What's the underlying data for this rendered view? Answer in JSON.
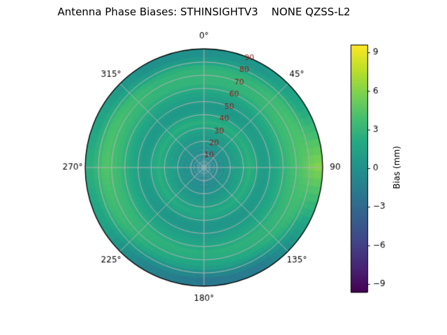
{
  "title": "Antenna Phase Biases: STHINSIGHTV3    NONE QZSS-L2",
  "chart_data": {
    "type": "heatmap",
    "projection": "polar",
    "title": "Antenna Phase Biases: STHINSIGHTV3    NONE QZSS-L2",
    "theta_zero_location": "N",
    "theta_direction": "clockwise",
    "angular_ticks": [
      {
        "deg": 0,
        "label": "0°"
      },
      {
        "deg": 45,
        "label": "45°"
      },
      {
        "deg": 90,
        "label": "90"
      },
      {
        "deg": 135,
        "label": "135°"
      },
      {
        "deg": 180,
        "label": "180°"
      },
      {
        "deg": 225,
        "label": "225°"
      },
      {
        "deg": 270,
        "label": "270°"
      },
      {
        "deg": 315,
        "label": "315°"
      }
    ],
    "radial_ticks": [
      10,
      20,
      30,
      40,
      50,
      60,
      70,
      80,
      90
    ],
    "radial_max": 90,
    "radial_label_angle_deg": 22.5,
    "grid": true,
    "colormap": "viridis",
    "azimuth_bins_deg": [
      0,
      30,
      60,
      90,
      120,
      150,
      180,
      210,
      240,
      270,
      300,
      330
    ],
    "ring_centers": [
      5,
      15,
      25,
      35,
      45,
      55,
      65,
      75,
      85
    ],
    "values_bias_mm": [
      [
        -1.0,
        0.0,
        1.0,
        2.5,
        0.5,
        1.5,
        3.0,
        3.0,
        0.0
      ],
      [
        -1.0,
        0.0,
        1.0,
        2.5,
        0.5,
        1.5,
        3.0,
        3.0,
        0.5
      ],
      [
        -1.0,
        0.0,
        1.2,
        2.5,
        0.8,
        2.0,
        3.5,
        4.0,
        2.0
      ],
      [
        -1.0,
        0.0,
        1.2,
        2.8,
        0.8,
        2.0,
        3.5,
        4.5,
        6.0
      ],
      [
        -1.0,
        0.0,
        1.0,
        2.5,
        0.5,
        1.8,
        3.0,
        3.5,
        1.5
      ],
      [
        -1.0,
        -0.3,
        0.8,
        2.2,
        0.3,
        1.5,
        2.8,
        2.0,
        -1.5
      ],
      [
        -1.2,
        -0.5,
        0.6,
        2.0,
        0.2,
        1.2,
        2.5,
        1.5,
        -2.0
      ],
      [
        -1.0,
        -0.3,
        0.8,
        2.2,
        0.3,
        1.5,
        2.8,
        2.0,
        -1.0
      ],
      [
        -1.0,
        0.0,
        1.0,
        2.5,
        0.5,
        1.8,
        3.2,
        3.5,
        1.5
      ],
      [
        -1.0,
        0.0,
        1.2,
        2.6,
        0.8,
        2.0,
        3.5,
        4.5,
        2.5
      ],
      [
        -1.0,
        0.0,
        1.0,
        2.5,
        0.5,
        1.8,
        3.2,
        4.0,
        1.5
      ],
      [
        -1.0,
        0.0,
        1.0,
        2.5,
        0.5,
        1.5,
        3.0,
        3.0,
        0.0
      ]
    ],
    "colorbar": {
      "label": "Bias (mm)",
      "ticks": [
        9,
        6,
        3,
        0,
        -3,
        -6,
        -9
      ],
      "tick_labels": [
        "9",
        "6",
        "3",
        "0",
        "−3",
        "−6",
        "−9"
      ],
      "vmin": -9.6,
      "vmax": 9.6
    }
  },
  "colors": {
    "background": "#ffffff",
    "grid": "#b2b2b2",
    "outline": "#000000",
    "angular_tick_color": "#000000",
    "radial_tick_color": "#8b1a1a"
  }
}
